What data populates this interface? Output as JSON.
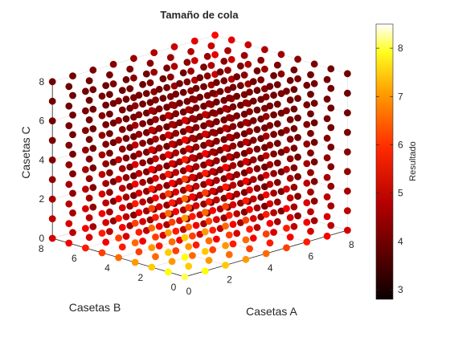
{
  "chart_data": {
    "type": "scatter3",
    "title": "Tamaño de cola",
    "xlabel": "Casetas A",
    "ylabel": "Casetas B",
    "zlabel": "Casetas C",
    "x_ticks": [
      "0",
      "2",
      "4",
      "6",
      "8"
    ],
    "y_ticks": [
      "0",
      "2",
      "4",
      "6",
      "8"
    ],
    "z_ticks": [
      "0",
      "2",
      "4",
      "6",
      "8"
    ],
    "xlim": [
      0,
      8
    ],
    "ylim": [
      0,
      8
    ],
    "zlim": [
      0,
      8
    ],
    "grid": true,
    "colorbar": {
      "label": "Resultado",
      "ticks": [
        "3",
        "4",
        "5",
        "6",
        "7",
        "8"
      ],
      "range": [
        2.8,
        8.5
      ],
      "colormap": "hot"
    },
    "points": "all integer combinations (x,y,z) with 0..8 each (729 points)",
    "marker_color_rule": "color value decreases as total casetas increases; highest near small totals"
  }
}
